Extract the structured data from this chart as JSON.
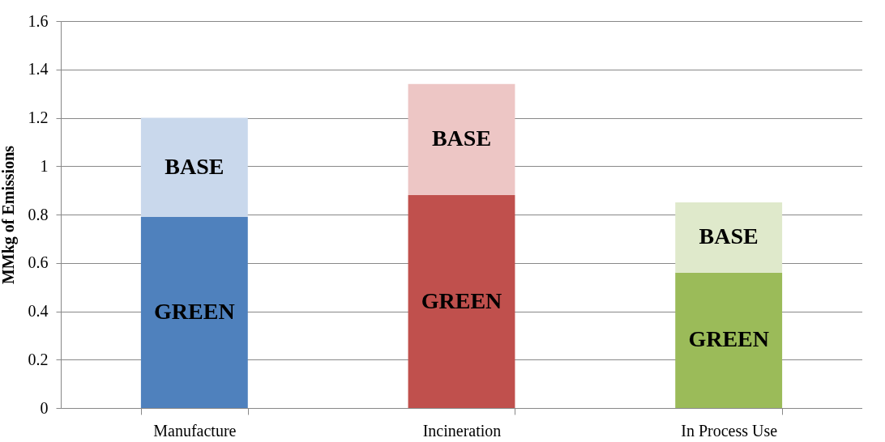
{
  "chart_data": {
    "type": "bar",
    "stacked": true,
    "ylabel": "MMkg of Emissions",
    "categories": [
      "Manufacture",
      "Incineration",
      "In Process Use"
    ],
    "series": [
      {
        "name": "GREEN",
        "colors": [
          "#4f81bd",
          "#c0504d",
          "#9bbb59"
        ],
        "values": [
          0.79,
          0.88,
          0.56
        ]
      },
      {
        "name": "BASE",
        "colors": [
          "#c9d8ec",
          "#edc6c5",
          "#dfe9cb"
        ],
        "values": [
          0.41,
          0.46,
          0.29
        ]
      }
    ],
    "ylim": [
      0,
      1.6
    ],
    "yticks": [
      0,
      0.2,
      0.4,
      0.6,
      0.8,
      1,
      1.2,
      1.4,
      1.6
    ],
    "grid": "y"
  }
}
